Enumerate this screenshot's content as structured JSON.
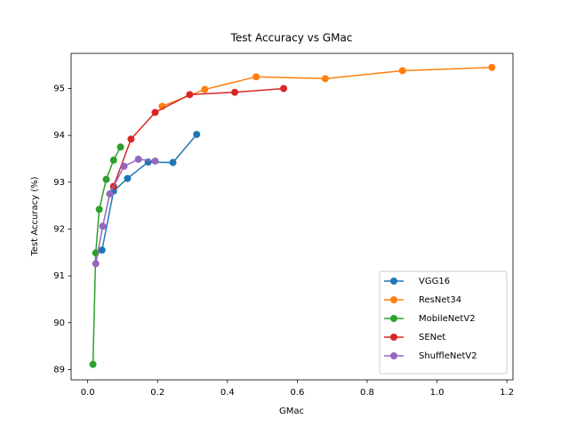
{
  "chart_data": {
    "type": "line",
    "title": "Test Accuracy vs GMac",
    "x_label": "GMac",
    "y_label": "Test Accuracy (%)",
    "xlim": [
      -0.0475,
      1.2175
    ],
    "ylim": [
      88.78,
      95.75
    ],
    "xticks": [
      {
        "value": 0,
        "label": "0.0"
      },
      0.2,
      0.4,
      0.6,
      0.8,
      {
        "value": 1,
        "label": "1.0"
      },
      1.2
    ],
    "yticks": [
      89,
      90,
      91,
      92,
      93,
      94,
      95
    ],
    "grid": false,
    "legend": "lower right",
    "series": [
      {
        "name": "VGG16",
        "color": "#1f77b4",
        "x": [
          0.041,
          0.074,
          0.114,
          0.173,
          0.244,
          0.312
        ],
        "values": [
          91.55,
          92.81,
          93.08,
          93.43,
          93.42,
          94.02
        ]
      },
      {
        "name": "ResNet34",
        "color": "#ff7f0e",
        "x": [
          0.213,
          0.335,
          0.482,
          0.68,
          0.901,
          1.157
        ],
        "values": [
          94.62,
          94.98,
          95.25,
          95.21,
          95.38,
          95.45
        ]
      },
      {
        "name": "MobileNetV2",
        "color": "#2ca02c",
        "x": [
          0.015,
          0.023,
          0.033,
          0.053,
          0.074,
          0.094
        ],
        "values": [
          89.11,
          91.49,
          92.42,
          93.06,
          93.47,
          93.75
        ]
      },
      {
        "name": "SENet",
        "color": "#d62728",
        "x": [
          0.074,
          0.124,
          0.193,
          0.292,
          0.421,
          0.561
        ],
        "values": [
          92.91,
          93.92,
          94.49,
          94.87,
          94.92,
          95.0
        ]
      },
      {
        "name": "ShuffleNetV2",
        "color": "#9467bd",
        "x": [
          0.023,
          0.043,
          0.063,
          0.104,
          0.145,
          0.193
        ],
        "values": [
          91.26,
          92.06,
          92.75,
          93.34,
          93.49,
          93.45
        ]
      }
    ]
  }
}
